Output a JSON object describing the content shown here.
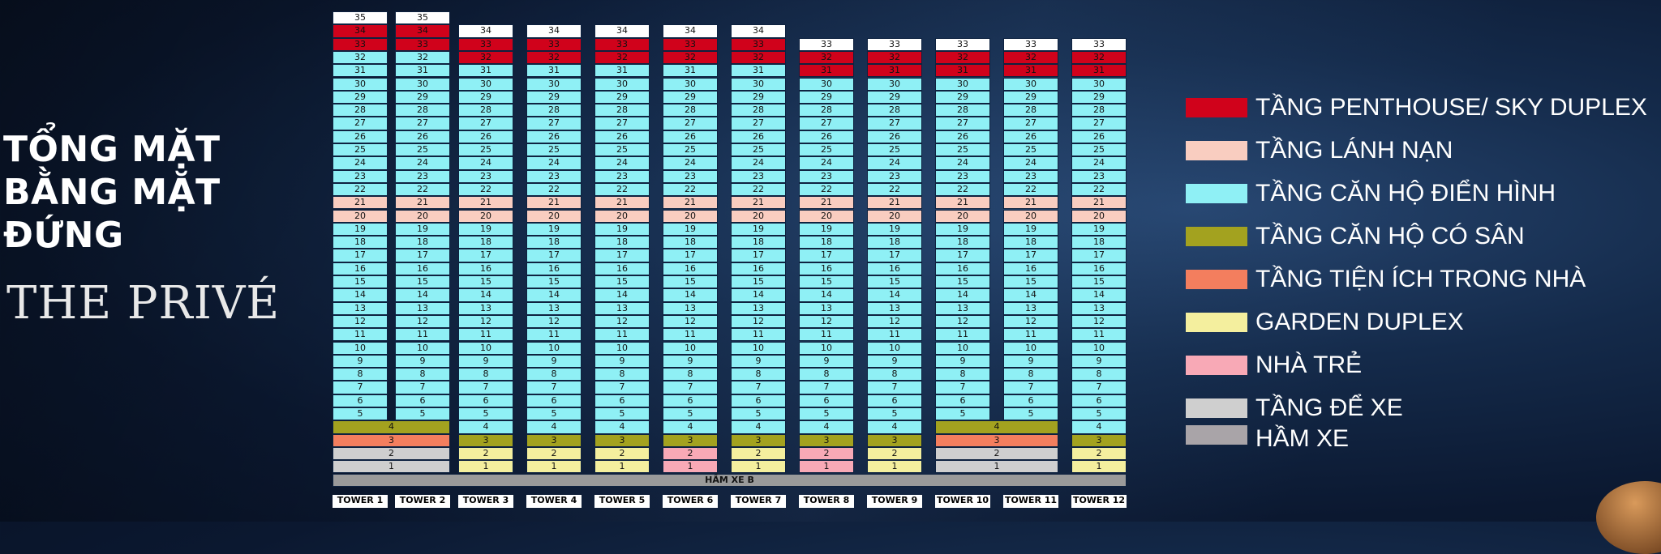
{
  "title_lines": [
    "TỔNG MẶT",
    "BẰNG MẶT",
    "ĐỨNG"
  ],
  "brand": "THE PRIVÉ",
  "colors": {
    "penthouse": "#d0021b",
    "refuge": "#f9cdc0",
    "typical": "#8ff0f5",
    "yard": "#a3a21f",
    "amenity": "#f37e5e",
    "garden": "#f4ef9e",
    "kindergarten": "#f8a9b6",
    "parking": "#cfcfcf",
    "basement": "#a9a4a8",
    "top": "#ffffff"
  },
  "towers": [
    {
      "label": "TOWER 1",
      "top": 35,
      "penthouse_from": 33
    },
    {
      "label": "TOWER 2",
      "top": 35,
      "penthouse_from": 33
    },
    {
      "label": "TOWER 3",
      "top": 34,
      "penthouse_from": 32
    },
    {
      "label": "TOWER 4",
      "top": 34,
      "penthouse_from": 32
    },
    {
      "label": "TOWER 5",
      "top": 34,
      "penthouse_from": 32
    },
    {
      "label": "TOWER 6",
      "top": 34,
      "penthouse_from": 32
    },
    {
      "label": "TOWER 7",
      "top": 34,
      "penthouse_from": 32
    },
    {
      "label": "TOWER 8",
      "top": 33,
      "penthouse_from": 31
    },
    {
      "label": "TOWER 9",
      "top": 33,
      "penthouse_from": 31
    },
    {
      "label": "TOWER 10",
      "top": 33,
      "penthouse_from": 31
    },
    {
      "label": "TOWER 11",
      "top": 33,
      "penthouse_from": 31
    },
    {
      "label": "TOWER 12",
      "top": 33,
      "penthouse_from": 31
    }
  ],
  "podium_groups": [
    {
      "towers": [
        0,
        1
      ],
      "f4": "yard",
      "f3": "amenity",
      "f2": "parking",
      "f1": "parking"
    },
    {
      "towers": [
        2
      ],
      "f4": "typical",
      "f3": "yard",
      "f2": "garden",
      "f1": "garden"
    },
    {
      "towers": [
        3
      ],
      "f4": "typical",
      "f3": "yard",
      "f2": "garden",
      "f1": "garden"
    },
    {
      "towers": [
        4
      ],
      "f4": "typical",
      "f3": "yard",
      "f2": "garden",
      "f1": "garden"
    },
    {
      "towers": [
        5
      ],
      "f4": "typical",
      "f3": "yard",
      "f2": "kindergarten",
      "f1": "kindergarten"
    },
    {
      "towers": [
        6
      ],
      "f4": "typical",
      "f3": "yard",
      "f2": "garden",
      "f1": "garden"
    },
    {
      "towers": [
        7
      ],
      "f4": "typical",
      "f3": "yard",
      "f2": "kindergarten",
      "f1": "kindergarten"
    },
    {
      "towers": [
        8
      ],
      "f4": "typical",
      "f3": "yard",
      "f2": "garden",
      "f1": "garden"
    },
    {
      "towers": [
        9,
        10
      ],
      "f4": "yard",
      "f3": "amenity",
      "f2": "parking",
      "f1": "parking"
    },
    {
      "towers": [
        11
      ],
      "f4": "typical",
      "f3": "yard",
      "f2": "garden",
      "f1": "garden"
    }
  ],
  "basement_label": "HẦM XE B",
  "legend": [
    {
      "key": "penthouse",
      "label": "TẦNG PENTHOUSE/ SKY DUPLEX"
    },
    {
      "key": "refuge",
      "label": "TẦNG LÁNH NẠN"
    },
    {
      "key": "typical",
      "label": "TẦNG CĂN HỘ ĐIỂN HÌNH"
    },
    {
      "key": "yard",
      "label": "TẦNG CĂN HỘ CÓ SÂN"
    },
    {
      "key": "amenity",
      "label": "TẦNG TIỆN ÍCH TRONG NHÀ"
    },
    {
      "key": "garden",
      "label": "GARDEN DUPLEX"
    },
    {
      "key": "kindergarten",
      "label": "NHÀ TRẺ"
    },
    {
      "key": "parking",
      "label": "TẦNG ĐỂ XE"
    },
    {
      "key": "basement",
      "label": "HẦM XE"
    }
  ]
}
